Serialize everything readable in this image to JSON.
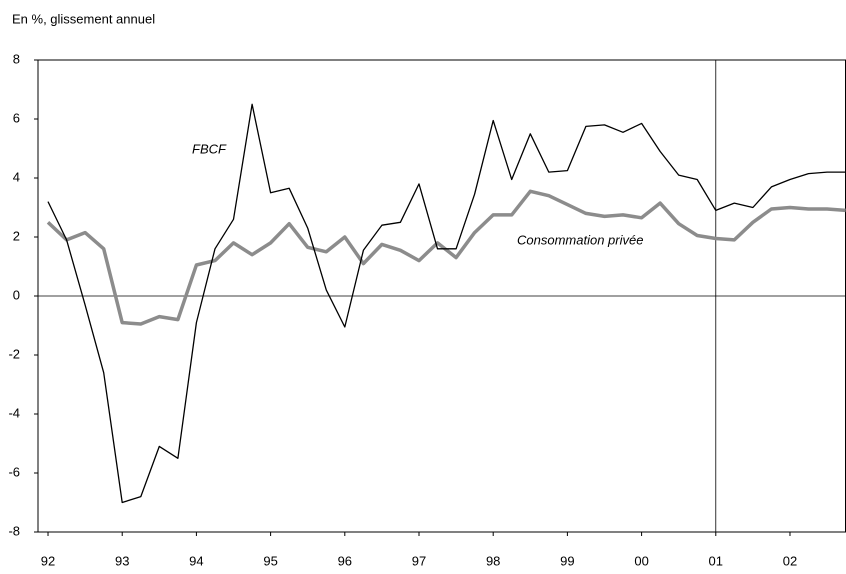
{
  "chart_data": {
    "type": "line",
    "subtitle": "En %, glissement annuel",
    "x": [
      1992,
      1992.25,
      1992.5,
      1992.75,
      1993,
      1993.25,
      1993.5,
      1993.75,
      1994,
      1994.25,
      1994.5,
      1994.75,
      1995,
      1995.25,
      1995.5,
      1995.75,
      1996,
      1996.25,
      1996.5,
      1996.75,
      1997,
      1997.25,
      1997.5,
      1997.75,
      1998,
      1998.25,
      1998.5,
      1998.75,
      1999,
      1999.25,
      1999.5,
      1999.75,
      2000,
      2000.25,
      2000.5,
      2000.75,
      2001,
      2001.25,
      2001.5,
      2001.75,
      2002,
      2002.25,
      2002.5,
      2002.75
    ],
    "series": [
      {
        "name": "FBCF",
        "color": "#000000",
        "width": 1.3,
        "values": [
          3.2,
          1.9,
          -0.3,
          -2.6,
          -7.0,
          -6.8,
          -5.1,
          -5.5,
          -0.9,
          1.6,
          2.6,
          6.5,
          3.5,
          3.65,
          2.3,
          0.2,
          -1.05,
          1.55,
          2.4,
          2.5,
          3.8,
          1.6,
          1.6,
          3.45,
          5.95,
          3.95,
          5.5,
          4.2,
          4.25,
          5.75,
          5.8,
          5.55,
          5.85,
          4.9,
          4.1,
          3.95,
          2.9,
          3.15,
          3.0,
          3.7,
          3.95,
          4.15,
          4.2,
          4.2
        ]
      },
      {
        "name": "Consommation privée",
        "color": "#8c8c8c",
        "width": 3.5,
        "values": [
          2.5,
          1.9,
          2.15,
          1.6,
          -0.9,
          -0.95,
          -0.7,
          -0.8,
          1.05,
          1.2,
          1.8,
          1.4,
          1.8,
          2.45,
          1.65,
          1.5,
          2.0,
          1.1,
          1.75,
          1.55,
          1.2,
          1.8,
          1.3,
          2.15,
          2.75,
          2.75,
          3.55,
          3.4,
          3.1,
          2.8,
          2.7,
          2.75,
          2.65,
          3.15,
          2.45,
          2.05,
          1.95,
          1.9,
          2.5,
          2.95,
          3.0,
          2.95,
          2.95,
          2.9
        ]
      }
    ],
    "xlim": [
      1991.865,
      2002.755
    ],
    "xticks": [
      {
        "value": 1992,
        "label": "92"
      },
      {
        "value": 1993,
        "label": "93"
      },
      {
        "value": 1994,
        "label": "94"
      },
      {
        "value": 1995,
        "label": "95"
      },
      {
        "value": 1996,
        "label": "96"
      },
      {
        "value": 1997,
        "label": "97"
      },
      {
        "value": 1998,
        "label": "98"
      },
      {
        "value": 1999,
        "label": "99"
      },
      {
        "value": 2000,
        "label": "00"
      },
      {
        "value": 2001,
        "label": "01"
      },
      {
        "value": 2002,
        "label": "02"
      }
    ],
    "ylim": [
      -8,
      8
    ],
    "yticks": [
      -8,
      -6,
      -4,
      -2,
      0,
      2,
      4,
      6,
      8
    ],
    "vline": 2001
  }
}
